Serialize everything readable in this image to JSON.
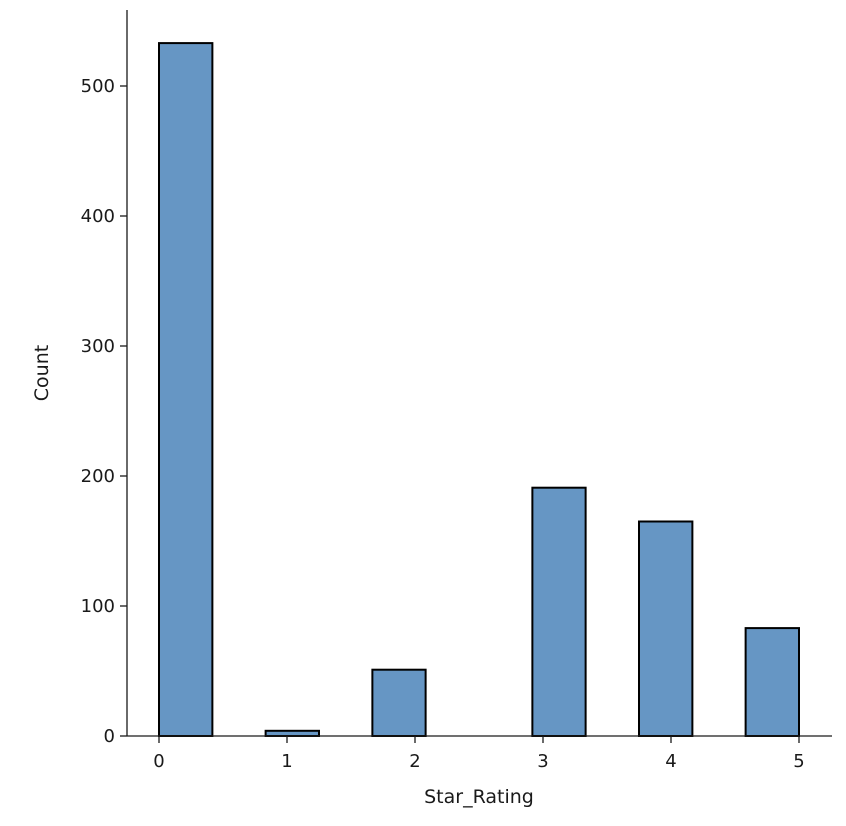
{
  "chart_data": {
    "type": "bar",
    "title": "",
    "xlabel": "Star_Rating",
    "ylabel": "Count",
    "xlim": [
      -0.25,
      5.25
    ],
    "ylim": [
      0,
      560
    ],
    "xticks": [
      0,
      1,
      2,
      3,
      4,
      5
    ],
    "yticks": [
      0,
      100,
      200,
      300,
      400,
      500
    ],
    "bars": [
      {
        "x_start": 0.0,
        "x_end": 0.417,
        "value": 533
      },
      {
        "x_start": 0.833,
        "x_end": 1.25,
        "value": 4
      },
      {
        "x_start": 1.667,
        "x_end": 2.083,
        "value": 51
      },
      {
        "x_start": 2.917,
        "x_end": 3.333,
        "value": 191
      },
      {
        "x_start": 3.75,
        "x_end": 4.167,
        "value": 165
      },
      {
        "x_start": 4.583,
        "x_end": 5.0,
        "value": 83
      }
    ],
    "grid": false,
    "bar_color": "#6696c4",
    "edge_color": "#000000"
  }
}
